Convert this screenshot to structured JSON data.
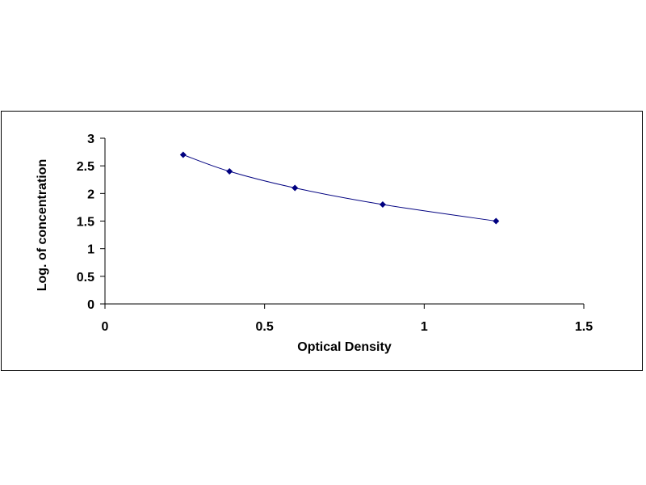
{
  "chart_data": {
    "type": "scatter",
    "title": "",
    "xlabel": "Optical Density",
    "ylabel": "Log. of concentration",
    "xlim": [
      0,
      1.5
    ],
    "ylim": [
      0,
      3
    ],
    "x_ticks": [
      "0",
      "0.5",
      "1",
      "1.5"
    ],
    "y_ticks": [
      "0",
      "0.5",
      "1",
      "1.5",
      "2",
      "2.5",
      "3"
    ],
    "grid": false,
    "legend": "none",
    "series": [
      {
        "points": [
          {
            "x": 0.245,
            "y": 2.7
          },
          {
            "x": 0.39,
            "y": 2.4
          },
          {
            "x": 0.595,
            "y": 2.1
          },
          {
            "x": 0.87,
            "y": 1.8
          },
          {
            "x": 1.225,
            "y": 1.5
          }
        ],
        "marker": "diamond",
        "color": "#000080",
        "trendline": "smooth"
      }
    ]
  }
}
